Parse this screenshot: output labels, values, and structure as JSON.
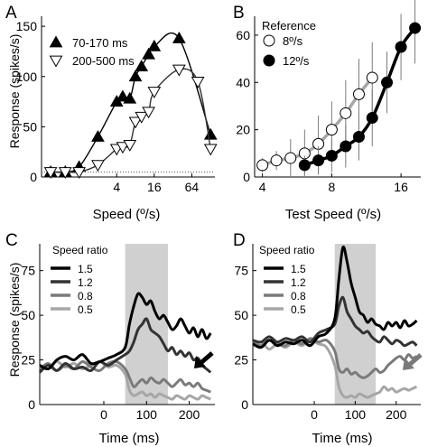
{
  "panel_letters": [
    "A",
    "B",
    "C",
    "D"
  ],
  "colors": {
    "black": "#000000",
    "dark_gray": "#333333",
    "mid_gray": "#7a7a7a",
    "light_gray": "#a6a6a6",
    "shade": "#d0d0d0",
    "axis": "#000000"
  },
  "chart_data": [
    {
      "panel": "A",
      "type": "line",
      "xlabel": "Speed (º/s)",
      "ylabel": "Response (spikes/s)",
      "x_scale": "log2",
      "xticks": [
        4,
        16,
        64
      ],
      "yticks": [
        0,
        50,
        100,
        150
      ],
      "xlim": [
        0.25,
        150
      ],
      "ylim": [
        0,
        160
      ],
      "legend_placement": "top-left",
      "reference_line": {
        "y": 5,
        "style": "dotted"
      },
      "series": [
        {
          "name": "70-170 ms",
          "marker": "filled-triangle-up",
          "x": [
            0.35,
            0.6,
            1.0,
            2.0,
            4.0,
            5.0,
            6.5,
            8.0,
            10.0,
            13.0,
            16.0,
            40.0,
            128.0
          ],
          "y": [
            5,
            5,
            10,
            40,
            75,
            80,
            78,
            100,
            110,
            122,
            130,
            138,
            42
          ]
        },
        {
          "name": "200-500 ms",
          "marker": "open-triangle-down",
          "x": [
            0.35,
            0.6,
            1.0,
            2.0,
            4.0,
            5.0,
            6.5,
            8.0,
            10.0,
            13.0,
            16.0,
            40.0,
            80.0,
            128.0
          ],
          "y": [
            5,
            5,
            5,
            12,
            28,
            30,
            32,
            55,
            60,
            65,
            85,
            107,
            95,
            28
          ]
        }
      ]
    },
    {
      "panel": "B",
      "type": "line",
      "title": "Reference",
      "xlabel": "Test Speed (º/s)",
      "x_scale": "log2",
      "xticks": [
        4,
        8,
        16
      ],
      "yticks": [
        0,
        20,
        40,
        60
      ],
      "xlim": [
        3.7,
        19.5
      ],
      "ylim": [
        0,
        68
      ],
      "legend_placement": "top-left",
      "series": [
        {
          "name": "8º/s",
          "marker": "open-circle",
          "x": [
            4.0,
            4.6,
            5.3,
            6.1,
            7.0,
            8.0,
            9.2,
            10.5,
            12.0
          ],
          "y": [
            5,
            7,
            8,
            10,
            14,
            20,
            27,
            35,
            42
          ],
          "err": [
            3,
            4,
            8,
            10,
            12,
            12,
            14,
            15,
            15
          ]
        },
        {
          "name": "12º/s",
          "marker": "filled-circle",
          "x": [
            6.1,
            7.0,
            8.0,
            9.2,
            10.5,
            12.0,
            13.9,
            16.0,
            18.4
          ],
          "y": [
            5,
            7,
            9,
            13,
            17,
            25,
            40,
            55,
            63
          ],
          "err": [
            4,
            6,
            7,
            9,
            10,
            12,
            13,
            14,
            15
          ]
        }
      ]
    },
    {
      "panel": "C",
      "type": "line",
      "title": "Speed ratio",
      "xlabel": "Time (ms)",
      "ylabel": "Response (spikes/s)",
      "xticks": [
        0,
        100,
        200
      ],
      "yticks": [
        0,
        25,
        50,
        75
      ],
      "xlim": [
        -150,
        260
      ],
      "ylim": [
        0,
        90
      ],
      "shaded_interval": [
        50,
        150
      ],
      "legend_placement": "top-left",
      "series": [
        {
          "name": "1.5",
          "x": [
            -150,
            -130,
            -110,
            -90,
            -70,
            -50,
            -30,
            -10,
            10,
            30,
            50,
            60,
            70,
            80,
            90,
            100,
            110,
            120,
            130,
            140,
            150,
            160,
            170,
            180,
            190,
            200,
            210,
            220,
            230,
            240,
            250
          ],
          "y": [
            22,
            20,
            25,
            27,
            25,
            28,
            23,
            24,
            26,
            28,
            32,
            45,
            55,
            62,
            60,
            56,
            58,
            52,
            48,
            50,
            46,
            42,
            44,
            48,
            44,
            40,
            43,
            38,
            42,
            37,
            40
          ]
        },
        {
          "name": "1.2",
          "x": [
            -150,
            -130,
            -110,
            -90,
            -70,
            -50,
            -30,
            -10,
            10,
            30,
            50,
            60,
            70,
            80,
            90,
            100,
            110,
            120,
            130,
            140,
            150,
            160,
            170,
            180,
            190,
            200,
            210,
            220,
            230,
            240,
            250
          ],
          "y": [
            18,
            22,
            19,
            23,
            20,
            21,
            19,
            24,
            22,
            25,
            28,
            30,
            35,
            42,
            45,
            48,
            42,
            40,
            38,
            34,
            30,
            32,
            28,
            30,
            27,
            29,
            25,
            26,
            22,
            20,
            18
          ]
        },
        {
          "name": "0.8",
          "x": [
            -150,
            -130,
            -110,
            -90,
            -70,
            -50,
            -30,
            -10,
            10,
            30,
            50,
            60,
            70,
            80,
            90,
            100,
            110,
            120,
            130,
            140,
            150,
            160,
            170,
            180,
            190,
            200,
            210,
            220,
            230,
            240,
            250
          ],
          "y": [
            20,
            23,
            19,
            22,
            20,
            24,
            21,
            19,
            23,
            24,
            20,
            15,
            10,
            12,
            14,
            12,
            15,
            13,
            12,
            14,
            12,
            10,
            12,
            14,
            11,
            12,
            10,
            12,
            9,
            8,
            7
          ]
        },
        {
          "name": "0.5",
          "x": [
            -150,
            -130,
            -110,
            -90,
            -70,
            -50,
            -30,
            -10,
            10,
            30,
            50,
            60,
            70,
            80,
            90,
            100,
            110,
            120,
            130,
            140,
            150,
            160,
            170,
            180,
            190,
            200,
            210,
            220,
            230,
            240,
            250
          ],
          "y": [
            22,
            20,
            24,
            21,
            23,
            20,
            22,
            24,
            21,
            22,
            17,
            8,
            5,
            6,
            7,
            5,
            6,
            4,
            6,
            5,
            4,
            3,
            5,
            4,
            3,
            5,
            4,
            3,
            5,
            4,
            3
          ]
        }
      ]
    },
    {
      "panel": "D",
      "type": "line",
      "title": "Speed ratio",
      "xlabel": "Time (ms)",
      "xticks": [
        0,
        100,
        200
      ],
      "yticks": [
        0,
        25,
        50,
        75
      ],
      "xlim": [
        -150,
        260
      ],
      "ylim": [
        0,
        90
      ],
      "shaded_interval": [
        50,
        150
      ],
      "legend_placement": "top-left",
      "series": [
        {
          "name": "1.5",
          "x": [
            -150,
            -130,
            -110,
            -90,
            -70,
            -50,
            -30,
            -10,
            10,
            30,
            50,
            60,
            70,
            80,
            90,
            100,
            110,
            120,
            130,
            140,
            150,
            160,
            170,
            180,
            190,
            200,
            210,
            220,
            230,
            240,
            250
          ],
          "y": [
            34,
            32,
            36,
            33,
            35,
            34,
            36,
            33,
            38,
            40,
            48,
            70,
            88,
            80,
            68,
            60,
            52,
            50,
            46,
            48,
            45,
            44,
            42,
            46,
            44,
            46,
            43,
            47,
            44,
            45,
            47
          ]
        },
        {
          "name": "1.2",
          "x": [
            -150,
            -130,
            -110,
            -90,
            -70,
            -50,
            -30,
            -10,
            10,
            30,
            50,
            60,
            70,
            80,
            90,
            100,
            110,
            120,
            130,
            140,
            150,
            160,
            170,
            180,
            190,
            200,
            210,
            220,
            230,
            240,
            250
          ],
          "y": [
            36,
            35,
            38,
            35,
            37,
            36,
            38,
            35,
            40,
            42,
            45,
            55,
            60,
            52,
            48,
            44,
            42,
            40,
            41,
            38,
            36,
            35,
            38,
            36,
            34,
            36,
            35,
            33,
            34,
            35,
            33
          ]
        },
        {
          "name": "0.8",
          "x": [
            -150,
            -130,
            -110,
            -90,
            -70,
            -50,
            -30,
            -10,
            10,
            30,
            50,
            60,
            70,
            80,
            90,
            100,
            110,
            120,
            130,
            140,
            150,
            160,
            170,
            180,
            190,
            200,
            210,
            220,
            230,
            240,
            250
          ],
          "y": [
            35,
            33,
            36,
            34,
            33,
            36,
            34,
            37,
            35,
            36,
            30,
            20,
            18,
            20,
            17,
            18,
            16,
            15,
            16,
            18,
            20,
            18,
            19,
            22,
            24,
            26,
            27,
            25,
            28,
            26,
            27
          ]
        },
        {
          "name": "0.5",
          "x": [
            -150,
            -130,
            -110,
            -90,
            -70,
            -50,
            -30,
            -10,
            10,
            30,
            50,
            60,
            70,
            80,
            90,
            100,
            110,
            120,
            130,
            140,
            150,
            160,
            170,
            180,
            190,
            200,
            210,
            220,
            230,
            240,
            250
          ],
          "y": [
            33,
            35,
            31,
            34,
            32,
            35,
            33,
            36,
            34,
            32,
            22,
            10,
            5,
            4,
            5,
            4,
            6,
            5,
            4,
            5,
            6,
            7,
            10,
            8,
            9,
            7,
            8,
            9,
            8,
            9,
            10
          ]
        }
      ]
    }
  ]
}
